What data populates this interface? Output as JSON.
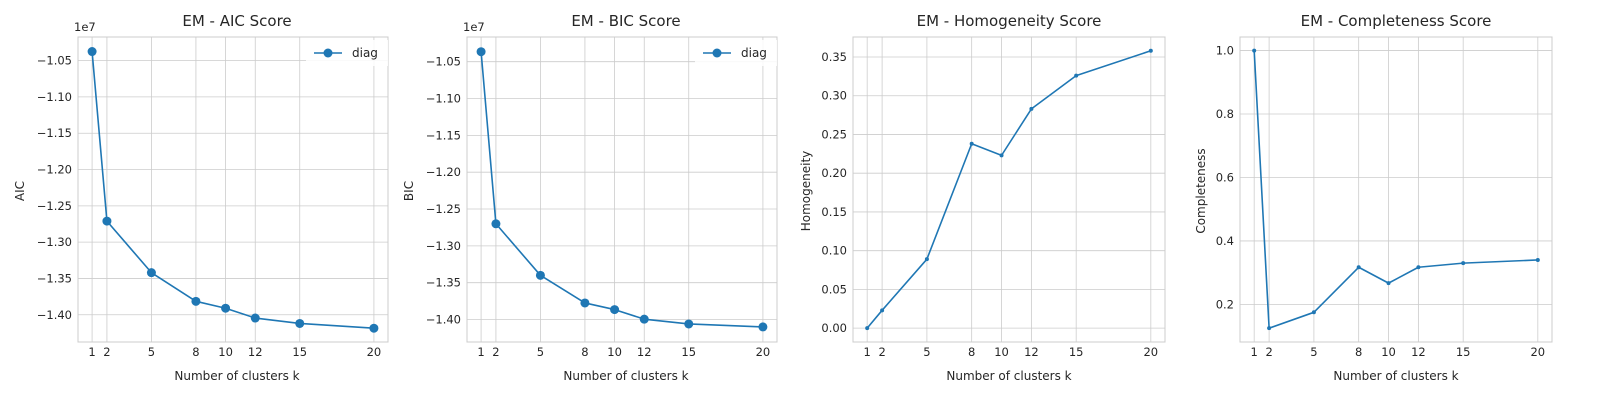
{
  "figure": {
    "background": "#ffffff",
    "grid_color": "#cccccc",
    "line_color": "#1f77b4"
  },
  "chart_data": [
    {
      "type": "line",
      "title": "EM - AIC Score",
      "xlabel": "Number of clusters k",
      "ylabel": "AIC",
      "offset_text": "1e7",
      "x": [
        1,
        2,
        5,
        8,
        10,
        12,
        15,
        20
      ],
      "xticks": [
        1,
        2,
        5,
        8,
        10,
        12,
        15,
        20
      ],
      "xtick_labels": [
        "1",
        "2",
        "5",
        "8",
        "10",
        "12",
        "15",
        "20"
      ],
      "xlim": [
        0.05,
        20.95
      ],
      "ylim": [
        -1.4375,
        -1.0175
      ],
      "yticks": [
        -1.05,
        -1.1,
        -1.15,
        -1.2,
        -1.25,
        -1.3,
        -1.35,
        -1.4
      ],
      "ytick_labels": [
        "−1.05",
        "−1.10",
        "−1.15",
        "−1.20",
        "−1.25",
        "−1.30",
        "−1.35",
        "−1.40"
      ],
      "grid": true,
      "marker": "large",
      "legend": "top-right",
      "series": [
        {
          "name": "diag",
          "values": [
            -1.0375,
            -1.271,
            -1.342,
            -1.3815,
            -1.391,
            -1.4045,
            -1.412,
            -1.4185
          ]
        }
      ]
    },
    {
      "type": "line",
      "title": "EM - BIC Score",
      "xlabel": "Number of clusters k",
      "ylabel": "BIC",
      "offset_text": "1e7",
      "x": [
        1,
        2,
        5,
        8,
        10,
        12,
        15,
        20
      ],
      "xticks": [
        1,
        2,
        5,
        8,
        10,
        12,
        15,
        20
      ],
      "xtick_labels": [
        "1",
        "2",
        "5",
        "8",
        "10",
        "12",
        "15",
        "20"
      ],
      "xlim": [
        0.05,
        20.95
      ],
      "ylim": [
        -1.4305,
        -1.0165
      ],
      "yticks": [
        -1.05,
        -1.1,
        -1.15,
        -1.2,
        -1.25,
        -1.3,
        -1.35,
        -1.4
      ],
      "ytick_labels": [
        "−1.05",
        "−1.10",
        "−1.15",
        "−1.20",
        "−1.25",
        "−1.30",
        "−1.35",
        "−1.40"
      ],
      "grid": true,
      "marker": "large",
      "legend": "top-right",
      "series": [
        {
          "name": "diag",
          "values": [
            -1.0365,
            -1.27,
            -1.34,
            -1.3775,
            -1.3865,
            -1.3995,
            -1.406,
            -1.41
          ]
        }
      ]
    },
    {
      "type": "line",
      "title": "EM - Homogeneity Score",
      "xlabel": "Number of clusters k",
      "ylabel": "Homogeneity",
      "x": [
        1,
        2,
        5,
        8,
        10,
        12,
        15,
        20
      ],
      "xticks": [
        1,
        2,
        5,
        8,
        10,
        12,
        15,
        20
      ],
      "xtick_labels": [
        "1",
        "2",
        "5",
        "8",
        "10",
        "12",
        "15",
        "20"
      ],
      "xlim": [
        0.05,
        20.95
      ],
      "ylim": [
        -0.0179,
        0.3758
      ],
      "yticks": [
        0.0,
        0.05,
        0.1,
        0.15,
        0.2,
        0.25,
        0.3,
        0.35
      ],
      "ytick_labels": [
        "0.00",
        "0.05",
        "0.10",
        "0.15",
        "0.20",
        "0.25",
        "0.30",
        "0.35"
      ],
      "grid": true,
      "marker": "small",
      "series": [
        {
          "values": [
            0.0,
            0.023,
            0.089,
            0.238,
            0.223,
            0.283,
            0.326,
            0.358
          ]
        }
      ]
    },
    {
      "type": "line",
      "title": "EM - Completeness Score",
      "xlabel": "Number of clusters k",
      "ylabel": "Completeness",
      "x": [
        1,
        2,
        5,
        8,
        10,
        12,
        15,
        20
      ],
      "xticks": [
        1,
        2,
        5,
        8,
        10,
        12,
        15,
        20
      ],
      "xtick_labels": [
        "1",
        "2",
        "5",
        "8",
        "10",
        "12",
        "15",
        "20"
      ],
      "xlim": [
        0.05,
        20.95
      ],
      "ylim": [
        0.0814,
        1.0428
      ],
      "yticks": [
        0.2,
        0.4,
        0.6,
        0.8,
        1.0
      ],
      "ytick_labels": [
        "0.2",
        "0.4",
        "0.6",
        "0.8",
        "1.0"
      ],
      "grid": true,
      "marker": "small",
      "series": [
        {
          "values": [
            1.0,
            0.125,
            0.175,
            0.317,
            0.267,
            0.317,
            0.33,
            0.34
          ]
        }
      ]
    }
  ]
}
